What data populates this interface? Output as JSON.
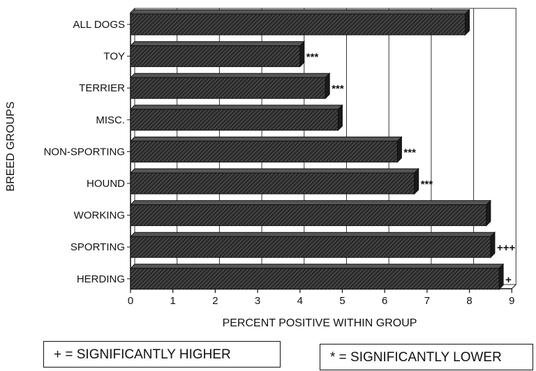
{
  "chart_data": {
    "type": "bar",
    "orientation": "horizontal",
    "categories": [
      "ALL DOGS",
      "TOY",
      "TERRIER",
      "MISC.",
      "NON-SPORTING",
      "HOUND",
      "WORKING",
      "SPORTING",
      "HERDING"
    ],
    "values": [
      7.9,
      4.0,
      4.6,
      4.9,
      6.3,
      6.7,
      8.4,
      8.5,
      8.7
    ],
    "significance": [
      "",
      "***",
      "***",
      "",
      "***",
      "***",
      "",
      "+++",
      "+"
    ],
    "xlabel": "PERCENT POSITIVE WITHIN GROUP",
    "ylabel": "BREED GROUPS",
    "xlim": [
      0,
      9
    ],
    "xticks": [
      "0",
      "1",
      "2",
      "3",
      "4",
      "5",
      "6",
      "7",
      "8",
      "9"
    ],
    "grid": true,
    "colors": {
      "bar": "#2b2b2b",
      "hatch": "#8a8a8a",
      "grid": "#333333"
    }
  },
  "legend": {
    "higher": "+ = SIGNIFICANTLY HIGHER",
    "lower": "* = SIGNIFICANTLY LOWER"
  }
}
